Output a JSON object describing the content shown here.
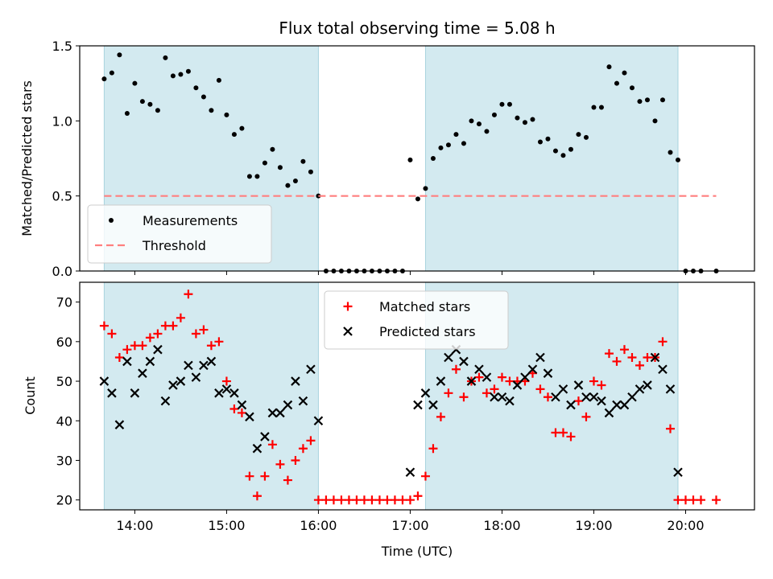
{
  "chart_data": [
    {
      "type": "scatter",
      "title": "Flux total observing time = 5.08 h",
      "xlabel": "",
      "ylabel": "Matched/Predicted stars",
      "xlim": [
        "13:24",
        "20:45"
      ],
      "ylim": [
        0,
        1.5
      ],
      "yticks": [
        0.0,
        0.5,
        1.0,
        1.5
      ],
      "ytick_labels": [
        "0.0",
        "0.5",
        "1.0",
        "1.5"
      ],
      "shaded_intervals": [
        [
          "13:40",
          "16:00"
        ],
        [
          "17:10",
          "19:55"
        ]
      ],
      "shade_color": "#d3eaf0",
      "legend_position": "lower-left",
      "series": [
        {
          "name": "Measurements",
          "color": "#000000",
          "marker": "dot",
          "points": [
            [
              "13:40",
              1.28
            ],
            [
              "13:45",
              1.32
            ],
            [
              "13:50",
              1.44
            ],
            [
              "13:55",
              1.05
            ],
            [
              "14:00",
              1.25
            ],
            [
              "14:05",
              1.13
            ],
            [
              "14:10",
              1.11
            ],
            [
              "14:15",
              1.07
            ],
            [
              "14:20",
              1.42
            ],
            [
              "14:25",
              1.3
            ],
            [
              "14:30",
              1.31
            ],
            [
              "14:35",
              1.33
            ],
            [
              "14:40",
              1.22
            ],
            [
              "14:45",
              1.16
            ],
            [
              "14:50",
              1.07
            ],
            [
              "14:55",
              1.27
            ],
            [
              "15:00",
              1.04
            ],
            [
              "15:05",
              0.91
            ],
            [
              "15:10",
              0.95
            ],
            [
              "15:15",
              0.63
            ],
            [
              "15:20",
              0.63
            ],
            [
              "15:25",
              0.72
            ],
            [
              "15:30",
              0.81
            ],
            [
              "15:35",
              0.69
            ],
            [
              "15:40",
              0.57
            ],
            [
              "15:45",
              0.6
            ],
            [
              "15:50",
              0.73
            ],
            [
              "15:55",
              0.66
            ],
            [
              "16:00",
              0.5
            ],
            [
              "16:05",
              0.0
            ],
            [
              "16:10",
              0.0
            ],
            [
              "16:15",
              0.0
            ],
            [
              "16:20",
              0.0
            ],
            [
              "16:25",
              0.0
            ],
            [
              "16:30",
              0.0
            ],
            [
              "16:35",
              0.0
            ],
            [
              "16:40",
              0.0
            ],
            [
              "16:45",
              0.0
            ],
            [
              "16:50",
              0.0
            ],
            [
              "16:55",
              0.0
            ],
            [
              "17:00",
              0.74
            ],
            [
              "17:05",
              0.48
            ],
            [
              "17:10",
              0.55
            ],
            [
              "17:15",
              0.75
            ],
            [
              "17:20",
              0.82
            ],
            [
              "17:25",
              0.84
            ],
            [
              "17:30",
              0.91
            ],
            [
              "17:35",
              0.85
            ],
            [
              "17:40",
              1.0
            ],
            [
              "17:45",
              0.98
            ],
            [
              "17:50",
              0.93
            ],
            [
              "17:55",
              1.04
            ],
            [
              "18:00",
              1.11
            ],
            [
              "18:05",
              1.11
            ],
            [
              "18:10",
              1.02
            ],
            [
              "18:15",
              0.99
            ],
            [
              "18:20",
              1.01
            ],
            [
              "18:25",
              0.86
            ],
            [
              "18:30",
              0.88
            ],
            [
              "18:35",
              0.8
            ],
            [
              "18:40",
              0.77
            ],
            [
              "18:45",
              0.81
            ],
            [
              "18:50",
              0.91
            ],
            [
              "18:55",
              0.89
            ],
            [
              "19:00",
              1.09
            ],
            [
              "19:05",
              1.09
            ],
            [
              "19:10",
              1.36
            ],
            [
              "19:15",
              1.25
            ],
            [
              "19:20",
              1.32
            ],
            [
              "19:25",
              1.22
            ],
            [
              "19:30",
              1.13
            ],
            [
              "19:35",
              1.14
            ],
            [
              "19:40",
              1.0
            ],
            [
              "19:45",
              1.14
            ],
            [
              "19:50",
              0.79
            ],
            [
              "19:55",
              0.74
            ],
            [
              "20:00",
              0.0
            ],
            [
              "20:05",
              0.0
            ],
            [
              "20:10",
              0.0
            ],
            [
              "20:20",
              0.0
            ]
          ]
        },
        {
          "name": "Threshold",
          "color": "#ff7f7f",
          "style": "dashed",
          "points": [
            [
              "13:40",
              0.5
            ],
            [
              "20:20",
              0.5
            ]
          ]
        }
      ]
    },
    {
      "type": "scatter",
      "title": "",
      "xlabel": "Time (UTC)",
      "ylabel": "Count",
      "xlim": [
        "13:24",
        "20:45"
      ],
      "ylim": [
        17.5,
        75
      ],
      "yticks": [
        20,
        30,
        40,
        50,
        60,
        70
      ],
      "ytick_labels": [
        "20",
        "30",
        "40",
        "50",
        "60",
        "70"
      ],
      "xticks": [
        "14:00",
        "15:00",
        "16:00",
        "17:00",
        "18:00",
        "19:00",
        "20:00"
      ],
      "xtick_labels": [
        "14:00",
        "15:00",
        "16:00",
        "17:00",
        "18:00",
        "19:00",
        "20:00"
      ],
      "shaded_intervals": [
        [
          "13:40",
          "16:00"
        ],
        [
          "17:10",
          "19:55"
        ]
      ],
      "shade_color": "#d3eaf0",
      "legend_position": "top-center",
      "series": [
        {
          "name": "Matched stars",
          "color": "#ff0000",
          "marker": "plus",
          "points": [
            [
              "13:40",
              64
            ],
            [
              "13:45",
              62
            ],
            [
              "13:50",
              56
            ],
            [
              "13:55",
              58
            ],
            [
              "14:00",
              59
            ],
            [
              "14:05",
              59
            ],
            [
              "14:10",
              61
            ],
            [
              "14:15",
              62
            ],
            [
              "14:20",
              64
            ],
            [
              "14:25",
              64
            ],
            [
              "14:30",
              66
            ],
            [
              "14:35",
              72
            ],
            [
              "14:40",
              62
            ],
            [
              "14:45",
              63
            ],
            [
              "14:50",
              59
            ],
            [
              "14:55",
              60
            ],
            [
              "15:00",
              50
            ],
            [
              "15:05",
              43
            ],
            [
              "15:10",
              42
            ],
            [
              "15:15",
              26
            ],
            [
              "15:20",
              21
            ],
            [
              "15:25",
              26
            ],
            [
              "15:30",
              34
            ],
            [
              "15:35",
              29
            ],
            [
              "15:40",
              25
            ],
            [
              "15:45",
              30
            ],
            [
              "15:50",
              33
            ],
            [
              "15:55",
              35
            ],
            [
              "16:00",
              20
            ],
            [
              "16:05",
              20
            ],
            [
              "16:10",
              20
            ],
            [
              "16:15",
              20
            ],
            [
              "16:20",
              20
            ],
            [
              "16:25",
              20
            ],
            [
              "16:30",
              20
            ],
            [
              "16:35",
              20
            ],
            [
              "16:40",
              20
            ],
            [
              "16:45",
              20
            ],
            [
              "16:50",
              20
            ],
            [
              "16:55",
              20
            ],
            [
              "17:00",
              20
            ],
            [
              "17:05",
              21
            ],
            [
              "17:10",
              26
            ],
            [
              "17:15",
              33
            ],
            [
              "17:20",
              41
            ],
            [
              "17:25",
              47
            ],
            [
              "17:30",
              53
            ],
            [
              "17:35",
              46
            ],
            [
              "17:40",
              50
            ],
            [
              "17:45",
              51
            ],
            [
              "17:50",
              47
            ],
            [
              "17:55",
              48
            ],
            [
              "18:00",
              51
            ],
            [
              "18:05",
              50
            ],
            [
              "18:10",
              50
            ],
            [
              "18:15",
              50
            ],
            [
              "18:20",
              52
            ],
            [
              "18:25",
              48
            ],
            [
              "18:30",
              46
            ],
            [
              "18:35",
              37
            ],
            [
              "18:40",
              37
            ],
            [
              "18:45",
              36
            ],
            [
              "18:50",
              45
            ],
            [
              "18:55",
              41
            ],
            [
              "19:00",
              50
            ],
            [
              "19:05",
              49
            ],
            [
              "19:10",
              57
            ],
            [
              "19:15",
              55
            ],
            [
              "19:20",
              58
            ],
            [
              "19:25",
              56
            ],
            [
              "19:30",
              54
            ],
            [
              "19:35",
              56
            ],
            [
              "19:40",
              56
            ],
            [
              "19:45",
              60
            ],
            [
              "19:50",
              38
            ],
            [
              "19:55",
              20
            ],
            [
              "20:00",
              20
            ],
            [
              "20:05",
              20
            ],
            [
              "20:10",
              20
            ],
            [
              "20:20",
              20
            ]
          ]
        },
        {
          "name": "Predicted stars",
          "color": "#000000",
          "marker": "x",
          "points": [
            [
              "13:40",
              50
            ],
            [
              "13:45",
              47
            ],
            [
              "13:50",
              39
            ],
            [
              "13:55",
              55
            ],
            [
              "14:00",
              47
            ],
            [
              "14:05",
              52
            ],
            [
              "14:10",
              55
            ],
            [
              "14:15",
              58
            ],
            [
              "14:20",
              45
            ],
            [
              "14:25",
              49
            ],
            [
              "14:30",
              50
            ],
            [
              "14:35",
              54
            ],
            [
              "14:40",
              51
            ],
            [
              "14:45",
              54
            ],
            [
              "14:50",
              55
            ],
            [
              "14:55",
              47
            ],
            [
              "15:00",
              48
            ],
            [
              "15:05",
              47
            ],
            [
              "15:10",
              44
            ],
            [
              "15:15",
              41
            ],
            [
              "15:20",
              33
            ],
            [
              "15:25",
              36
            ],
            [
              "15:30",
              42
            ],
            [
              "15:35",
              42
            ],
            [
              "15:40",
              44
            ],
            [
              "15:45",
              50
            ],
            [
              "15:50",
              45
            ],
            [
              "15:55",
              53
            ],
            [
              "16:00",
              40
            ],
            [
              "17:00",
              27
            ],
            [
              "17:05",
              44
            ],
            [
              "17:10",
              47
            ],
            [
              "17:15",
              44
            ],
            [
              "17:20",
              50
            ],
            [
              "17:25",
              56
            ],
            [
              "17:30",
              58
            ],
            [
              "17:35",
              55
            ],
            [
              "17:40",
              50
            ],
            [
              "17:45",
              53
            ],
            [
              "17:50",
              51
            ],
            [
              "17:55",
              46
            ],
            [
              "18:00",
              46
            ],
            [
              "18:05",
              45
            ],
            [
              "18:10",
              49
            ],
            [
              "18:15",
              51
            ],
            [
              "18:20",
              53
            ],
            [
              "18:25",
              56
            ],
            [
              "18:30",
              52
            ],
            [
              "18:35",
              46
            ],
            [
              "18:40",
              48
            ],
            [
              "18:45",
              44
            ],
            [
              "18:50",
              49
            ],
            [
              "18:55",
              46
            ],
            [
              "19:00",
              46
            ],
            [
              "19:05",
              45
            ],
            [
              "19:10",
              42
            ],
            [
              "19:15",
              44
            ],
            [
              "19:20",
              44
            ],
            [
              "19:25",
              46
            ],
            [
              "19:30",
              48
            ],
            [
              "19:35",
              49
            ],
            [
              "19:40",
              56
            ],
            [
              "19:45",
              53
            ],
            [
              "19:50",
              48
            ],
            [
              "19:55",
              27
            ]
          ]
        }
      ]
    }
  ]
}
